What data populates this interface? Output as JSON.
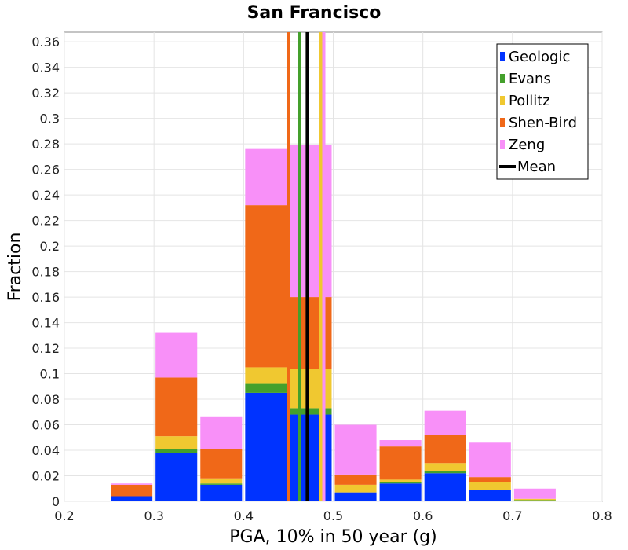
{
  "chart_data": {
    "type": "bar",
    "stacked": true,
    "title": "San Francisco",
    "xlabel": "PGA, 10% in 50 year (g)",
    "ylabel": "Fraction",
    "xlim": [
      0.2,
      0.8
    ],
    "ylim": [
      0,
      0.3675
    ],
    "bin_width": 0.05,
    "x_ticks": [
      "0.2",
      "0.3",
      "0.4",
      "0.5",
      "0.6",
      "0.7",
      "0.8"
    ],
    "y_ticks": [
      "0",
      "0.02",
      "0.04",
      "0.06",
      "0.08",
      "0.1",
      "0.12",
      "0.14",
      "0.16",
      "0.18",
      "0.2",
      "0.22",
      "0.24",
      "0.26",
      "0.28",
      "0.3",
      "0.32",
      "0.34",
      "0.36"
    ],
    "legend_position": "top-right",
    "grid": true,
    "bins": [
      {
        "x0": 0.25,
        "x1": 0.3
      },
      {
        "x0": 0.3,
        "x1": 0.35
      },
      {
        "x0": 0.35,
        "x1": 0.4
      },
      {
        "x0": 0.4,
        "x1": 0.45
      },
      {
        "x0": 0.45,
        "x1": 0.5
      },
      {
        "x0": 0.5,
        "x1": 0.55
      },
      {
        "x0": 0.55,
        "x1": 0.6
      },
      {
        "x0": 0.6,
        "x1": 0.65
      },
      {
        "x0": 0.65,
        "x1": 0.7
      },
      {
        "x0": 0.7,
        "x1": 0.75
      },
      {
        "x0": 0.75,
        "x1": 0.8
      }
    ],
    "series": [
      {
        "name": "Geologic",
        "color": "#0033ff",
        "values": [
          0.004,
          0.038,
          0.013,
          0.085,
          0.068,
          0.007,
          0.014,
          0.022,
          0.009,
          0.0,
          0.0
        ],
        "vline": null
      },
      {
        "name": "Evans",
        "color": "#44a02c",
        "values": [
          0.0,
          0.003,
          0.001,
          0.007,
          0.005,
          0.0,
          0.001,
          0.002,
          0.0,
          0.001,
          0.0
        ],
        "vline": 0.4625
      },
      {
        "name": "Pollitz",
        "color": "#f0c830",
        "values": [
          0.0,
          0.01,
          0.004,
          0.013,
          0.031,
          0.006,
          0.002,
          0.006,
          0.006,
          0.001,
          0.0
        ],
        "vline": 0.486
      },
      {
        "name": "Shen-Bird",
        "color": "#f06818",
        "values": [
          0.009,
          0.046,
          0.023,
          0.127,
          0.056,
          0.008,
          0.026,
          0.022,
          0.004,
          0.0,
          0.0
        ],
        "vline": 0.45
      },
      {
        "name": "Zeng",
        "color": "#f890f8",
        "values": [
          0.001,
          0.035,
          0.025,
          0.044,
          0.119,
          0.039,
          0.005,
          0.019,
          0.027,
          0.008,
          0.0005
        ],
        "vline": 0.4895
      }
    ],
    "mean": {
      "name": "Mean",
      "color": "#000000",
      "value": 0.471
    }
  }
}
